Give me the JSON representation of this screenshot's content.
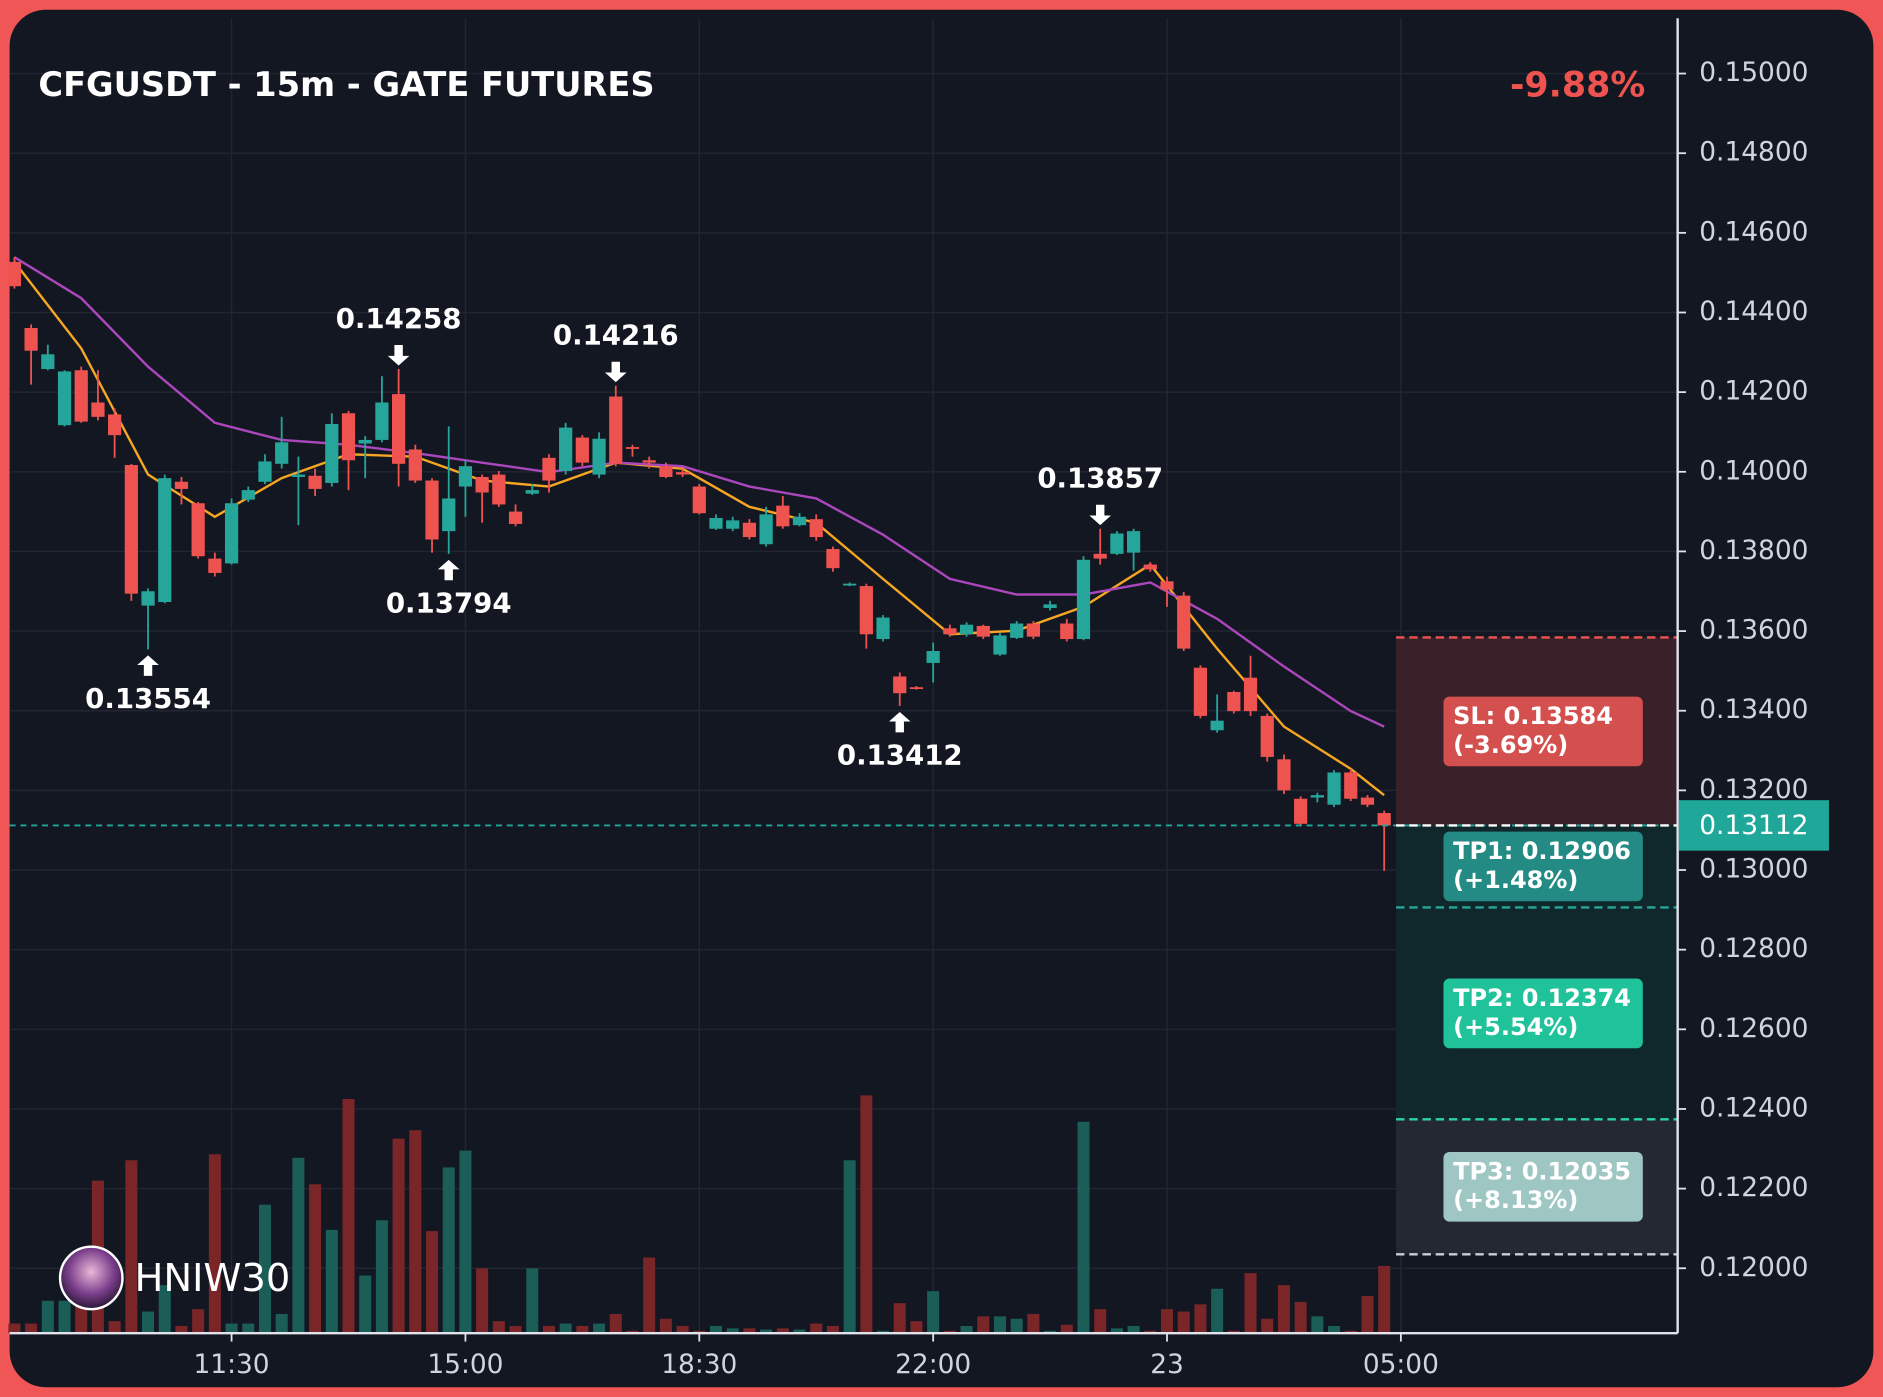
{
  "chart_data": {
    "type": "candlestick",
    "title": "CFGUSDT - 15m - GATE FUTURES",
    "change": "-9.88%",
    "watermark": "HNIW30",
    "up_color": "#26a69a",
    "down_color": "#ef5350",
    "volume_up_color": "#1b5e58",
    "volume_down_color": "#7a2628",
    "last_price_color": "#1fa89a",
    "grid": true,
    "categories": [
      null,
      null,
      null,
      null,
      null,
      null,
      null,
      null,
      null,
      null,
      null,
      null,
      null,
      "11:30",
      null,
      null,
      null,
      null,
      null,
      null,
      null,
      null,
      null,
      null,
      null,
      null,
      null,
      "15:00",
      null,
      null,
      null,
      null,
      null,
      null,
      null,
      null,
      null,
      null,
      null,
      null,
      null,
      "18:30",
      null,
      null,
      null,
      null,
      null,
      null,
      null,
      null,
      null,
      null,
      null,
      null,
      null,
      "22:00",
      null,
      null,
      null,
      null,
      null,
      null,
      null,
      null,
      null,
      null,
      null,
      null,
      null,
      "23",
      null,
      null,
      null,
      null,
      null,
      null,
      null,
      null,
      null,
      null,
      null,
      null,
      null,
      "05:00"
    ],
    "open": [
      0.14527,
      0.14361,
      0.14258,
      0.14117,
      0.14255,
      0.14174,
      0.14144,
      0.14017,
      0.13664,
      0.13673,
      0.13975,
      0.13921,
      0.13782,
      0.1377,
      0.1393,
      0.13975,
      0.1402,
      0.13987,
      0.1399,
      0.13972,
      0.14147,
      0.14071,
      0.1408,
      0.14195,
      0.14056,
      0.13978,
      0.13851,
      0.13963,
      0.13987,
      0.13993,
      0.139,
      0.13945,
      0.14035,
      0.14002,
      0.14086,
      0.13993,
      0.14189,
      0.14062,
      0.14029,
      0.14014,
      0.13999,
      0.13963,
      0.13857,
      0.13857,
      0.13872,
      0.13818,
      0.13915,
      0.13866,
      0.13881,
      0.13806,
      0.13716,
      0.13713,
      0.1358,
      0.13486,
      0.13459,
      0.1352,
      0.13607,
      0.13592,
      0.13613,
      0.13541,
      0.13583,
      0.13619,
      0.13658,
      0.13619,
      0.1358,
      0.13794,
      0.13794,
      0.13797,
      0.13767,
      0.13725,
      0.13689,
      0.13508,
      0.13351,
      0.13447,
      0.13483,
      0.13387,
      0.13278,
      0.13179,
      0.13182,
      0.13164,
      0.13245,
      0.13182,
      0.13143,
      null
    ],
    "high": [
      0.14539,
      0.1437,
      0.14319,
      0.14255,
      0.14264,
      0.14255,
      0.14159,
      0.1402,
      0.13707,
      0.13993,
      0.13987,
      0.13924,
      0.13797,
      0.13933,
      0.13963,
      0.14044,
      0.14138,
      0.14038,
      0.14008,
      0.14147,
      0.14153,
      0.1409,
      0.1424,
      0.14258,
      0.14068,
      0.13984,
      0.14114,
      0.14029,
      0.13993,
      0.14002,
      0.13918,
      0.13969,
      0.14044,
      0.14123,
      0.14092,
      0.14099,
      0.14216,
      0.14068,
      0.14038,
      0.14023,
      0.14008,
      0.13969,
      0.13893,
      0.13887,
      0.13881,
      0.13912,
      0.13939,
      0.13896,
      0.13893,
      0.13812,
      0.13722,
      0.13719,
      0.1364,
      0.13496,
      0.13462,
      0.13571,
      0.13616,
      0.13622,
      0.13616,
      0.13595,
      0.13625,
      0.13625,
      0.13676,
      0.13631,
      0.13788,
      0.13857,
      0.13851,
      0.13857,
      0.13773,
      0.13737,
      0.13698,
      0.13514,
      0.13441,
      0.1345,
      0.13538,
      0.13393,
      0.1329,
      0.13185,
      0.13194,
      0.13251,
      0.13254,
      0.13188,
      0.13149,
      null
    ],
    "low": [
      0.1446,
      0.14219,
      0.14255,
      0.14114,
      0.14123,
      0.14129,
      0.14035,
      0.13676,
      0.13554,
      0.1367,
      0.13918,
      0.13782,
      0.13737,
      0.13767,
      0.13924,
      0.13969,
      0.14008,
      0.13866,
      0.13939,
      0.13963,
      0.13954,
      0.13984,
      0.14074,
      0.13963,
      0.13972,
      0.13797,
      0.13794,
      0.13887,
      0.13872,
      0.13912,
      0.13863,
      0.13942,
      0.13948,
      0.13993,
      0.14014,
      0.13984,
      0.14014,
      0.14038,
      0.14008,
      0.13984,
      0.13987,
      0.13893,
      0.13854,
      0.13851,
      0.1383,
      0.13812,
      0.13857,
      0.13863,
      0.13827,
      0.13749,
      0.13713,
      0.13556,
      0.13574,
      0.13412,
      0.13453,
      0.13471,
      0.13586,
      0.13586,
      0.1358,
      0.13538,
      0.1358,
      0.1358,
      0.13652,
      0.13574,
      0.13577,
      0.13767,
      0.13791,
      0.13752,
      0.13749,
      0.13661,
      0.1355,
      0.13381,
      0.13345,
      0.13393,
      0.13387,
      0.13272,
      0.13191,
      0.1311,
      0.1317,
      0.13158,
      0.13173,
      0.13158,
      0.12998,
      null
    ],
    "close": [
      0.14466,
      0.14304,
      0.14295,
      0.14252,
      0.14126,
      0.14138,
      0.14092,
      0.13694,
      0.137,
      0.13984,
      0.13957,
      0.13788,
      0.13746,
      0.13921,
      0.13954,
      0.14026,
      0.14074,
      0.13993,
      0.13957,
      0.1412,
      0.14029,
      0.1408,
      0.14174,
      0.1402,
      0.13978,
      0.1383,
      0.13933,
      0.14014,
      0.13948,
      0.13918,
      0.13869,
      0.13954,
      0.13978,
      0.14111,
      0.14023,
      0.14083,
      0.1402,
      0.14059,
      0.14023,
      0.13987,
      0.13993,
      0.13896,
      0.13884,
      0.13878,
      0.13836,
      0.13893,
      0.13863,
      0.13887,
      0.13836,
      0.13758,
      0.13719,
      0.13592,
      0.13634,
      0.13444,
      0.13456,
      0.1355,
      0.13592,
      0.13616,
      0.13586,
      0.13589,
      0.13619,
      0.13586,
      0.13667,
      0.1358,
      0.13779,
      0.13782,
      0.13845,
      0.13851,
      0.13755,
      0.13704,
      0.13556,
      0.13387,
      0.13375,
      0.13399,
      0.13399,
      0.13284,
      0.132,
      0.13116,
      0.13188,
      0.13245,
      0.13179,
      0.13164,
      0.13112,
      null
    ],
    "volume": [
      8,
      8,
      27,
      27,
      25,
      127,
      10,
      144,
      18,
      40,
      6,
      20,
      149,
      8,
      8,
      107,
      16,
      146,
      124,
      86,
      195,
      48,
      94,
      162,
      169,
      85,
      138,
      152,
      54,
      10,
      6,
      54,
      6,
      8,
      6,
      8,
      16,
      2,
      63,
      12,
      6,
      2,
      6,
      4,
      4,
      3,
      4,
      3,
      8,
      6,
      144,
      198,
      2,
      25,
      10,
      35,
      2,
      6,
      14,
      14,
      12,
      16,
      2,
      7,
      176,
      20,
      4,
      6,
      2,
      20,
      18,
      24,
      37,
      2,
      50,
      12,
      40,
      26,
      14,
      6,
      2,
      31,
      56,
      null
    ],
    "moving_averages": [
      {
        "color": "#f5a623",
        "x": [
          0,
          4,
          8,
          12,
          16,
          20,
          24,
          28,
          32,
          36,
          40,
          44,
          48,
          52,
          56,
          60,
          64,
          68,
          72,
          76,
          80,
          82
        ],
        "values": [
          0.14527,
          0.1431,
          0.13993,
          0.13887,
          0.13984,
          0.14044,
          0.14038,
          0.13978,
          0.13963,
          0.14023,
          0.14008,
          0.13912,
          0.13872,
          0.13731,
          0.13592,
          0.13601,
          0.13661,
          0.13767,
          0.13556,
          0.1336,
          0.13254,
          0.13188
        ]
      },
      {
        "color": "#ab47bc",
        "x": [
          0,
          4,
          8,
          12,
          16,
          20,
          24,
          28,
          32,
          36,
          40,
          44,
          48,
          52,
          56,
          60,
          64,
          68,
          72,
          76,
          80,
          82
        ],
        "values": [
          0.14539,
          0.14436,
          0.14264,
          0.14123,
          0.1408,
          0.14068,
          0.14047,
          0.14023,
          0.13999,
          0.14023,
          0.14014,
          0.13963,
          0.13933,
          0.13842,
          0.13731,
          0.13692,
          0.13692,
          0.13722,
          0.13631,
          0.13511,
          0.13399,
          0.1336
        ]
      }
    ],
    "marked_highs": [
      23,
      36,
      65
    ],
    "marked_lows": [
      8,
      26,
      53
    ],
    "levels": [
      {
        "label": "SL: 0.13584",
        "change": "(-3.69%)",
        "value": 0.13584,
        "color": "#d4504e",
        "line_color": "#ef5350",
        "zone_color": "#3a2028"
      },
      {
        "label": "TP1: 0.12906",
        "change": "(+1.48%)",
        "value": 0.12906,
        "color": "#238a84",
        "line_color": "#26a69a",
        "zone_color": "#10282c"
      },
      {
        "label": "TP2: 0.12374",
        "change": "(+5.54%)",
        "value": 0.12374,
        "color": "#20c29a",
        "line_color": "#2bd3ad",
        "zone_color": "#10282c"
      },
      {
        "label": "TP3: 0.12035",
        "change": "(+8.13%)",
        "value": 0.12035,
        "color": "#9ec6c3",
        "line_color": "#c8d0d4",
        "zone_color": "#232833"
      }
    ],
    "ylim": [
      0.11837,
      0.15139
    ],
    "yticks": [
      {
        "value": 0.15,
        "label": "0.15000"
      },
      {
        "value": 0.148,
        "label": "0.14800"
      },
      {
        "value": 0.146,
        "label": "0.14600"
      },
      {
        "value": 0.144,
        "label": "0.14400"
      },
      {
        "value": 0.142,
        "label": "0.14200"
      },
      {
        "value": 0.14,
        "label": "0.14000"
      },
      {
        "value": 0.138,
        "label": "0.13800"
      },
      {
        "value": 0.136,
        "label": "0.13600"
      },
      {
        "value": 0.134,
        "label": "0.13400"
      },
      {
        "value": 0.132,
        "label": "0.13200"
      },
      {
        "value": 0.13,
        "label": "0.13000"
      },
      {
        "value": 0.128,
        "label": "0.12800"
      },
      {
        "value": 0.126,
        "label": "0.12600"
      },
      {
        "value": 0.124,
        "label": "0.12400"
      },
      {
        "value": 0.122,
        "label": "0.12200"
      },
      {
        "value": 0.12,
        "label": "0.12000"
      }
    ]
  }
}
